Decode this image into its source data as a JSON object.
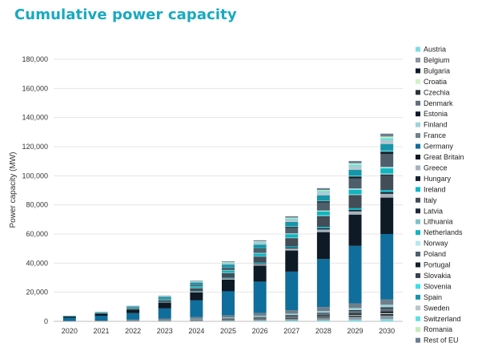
{
  "page_title": "Cumulative power capacity",
  "chart_data": {
    "type": "bar",
    "stacked": true,
    "title": "Cumulative power capacity",
    "xlabel": "",
    "ylabel": "Power capacity (MW)",
    "ylim": [
      0,
      180000
    ],
    "yticks": [
      0,
      20000,
      40000,
      60000,
      80000,
      100000,
      120000,
      140000,
      160000,
      180000
    ],
    "ytick_labels": [
      "0",
      "20,000",
      "40,000",
      "60,000",
      "80,000",
      "100,000",
      "120,000",
      "140,000",
      "160,000",
      "180,000"
    ],
    "grid": true,
    "legend_position": "right",
    "categories": [
      "2020",
      "2021",
      "2022",
      "2023",
      "2024",
      "2025",
      "2026",
      "2027",
      "2028",
      "2029",
      "2030"
    ],
    "series": [
      {
        "name": "Austria",
        "color": "#7fdbe4",
        "values": [
          20,
          30,
          60,
          100,
          150,
          250,
          400,
          600,
          800,
          1200,
          1500
        ]
      },
      {
        "name": "Belgium",
        "color": "#8c969f",
        "values": [
          50,
          80,
          150,
          250,
          400,
          600,
          900,
          1200,
          1600,
          2000,
          2500
        ]
      },
      {
        "name": "Bulgaria",
        "color": "#0e1d2b",
        "values": [
          10,
          20,
          40,
          80,
          120,
          200,
          300,
          450,
          600,
          800,
          1000
        ]
      },
      {
        "name": "Croatia",
        "color": "#d4f1c8",
        "values": [
          5,
          10,
          20,
          40,
          60,
          100,
          150,
          220,
          300,
          400,
          500
        ]
      },
      {
        "name": "Czechia",
        "color": "#2b333b",
        "values": [
          10,
          20,
          40,
          80,
          150,
          250,
          400,
          600,
          800,
          1100,
          1400
        ]
      },
      {
        "name": "Denmark",
        "color": "#5f6e7a",
        "values": [
          80,
          120,
          200,
          300,
          450,
          600,
          800,
          1000,
          1300,
          1600,
          2000
        ]
      },
      {
        "name": "Estonia",
        "color": "#0b1a28",
        "values": [
          5,
          10,
          20,
          40,
          70,
          120,
          200,
          300,
          400,
          550,
          700
        ]
      },
      {
        "name": "Finland",
        "color": "#9ed3d8",
        "values": [
          30,
          60,
          120,
          200,
          300,
          450,
          650,
          900,
          1200,
          1500,
          1800
        ]
      },
      {
        "name": "France",
        "color": "#6f7f8c",
        "values": [
          100,
          200,
          500,
          800,
          1200,
          1600,
          2000,
          2400,
          2800,
          3200,
          3600
        ]
      },
      {
        "name": "Germany",
        "color": "#0f6e9b",
        "values": [
          2200,
          3300,
          4500,
          7000,
          11500,
          16500,
          21500,
          26500,
          33000,
          39500,
          45000
        ]
      },
      {
        "name": "Great Britain",
        "color": "#0e1a26",
        "values": [
          800,
          1500,
          2500,
          4000,
          5500,
          8000,
          11000,
          14500,
          18500,
          21500,
          25000
        ]
      },
      {
        "name": "Greece",
        "color": "#a6b1ba",
        "values": [
          20,
          40,
          100,
          200,
          400,
          700,
          1000,
          1400,
          1800,
          2200,
          2600
        ]
      },
      {
        "name": "Hungary",
        "color": "#142230",
        "values": [
          10,
          20,
          40,
          80,
          150,
          250,
          400,
          550,
          750,
          950,
          1200
        ]
      },
      {
        "name": "Ireland",
        "color": "#11b8c8",
        "values": [
          20,
          40,
          80,
          150,
          250,
          400,
          600,
          800,
          1000,
          1200,
          1400
        ]
      },
      {
        "name": "Italy",
        "color": "#434d57",
        "values": [
          100,
          200,
          500,
          1000,
          2000,
          3000,
          4000,
          5500,
          7000,
          8500,
          10000
        ]
      },
      {
        "name": "Latvia",
        "color": "#1c2a36",
        "values": [
          5,
          10,
          20,
          40,
          70,
          120,
          180,
          260,
          350,
          450,
          550
        ]
      },
      {
        "name": "Lithuania",
        "color": "#7ec3c8",
        "values": [
          10,
          20,
          40,
          80,
          150,
          250,
          350,
          500,
          650,
          800,
          950
        ]
      },
      {
        "name": "Netherlands",
        "color": "#0fb5bf",
        "values": [
          100,
          200,
          400,
          700,
          1000,
          1400,
          1800,
          2200,
          2600,
          3000,
          3400
        ]
      },
      {
        "name": "Norway",
        "color": "#b6e8ec",
        "values": [
          10,
          20,
          40,
          80,
          150,
          250,
          350,
          500,
          650,
          800,
          950
        ]
      },
      {
        "name": "Poland",
        "color": "#4e5e6b",
        "values": [
          20,
          50,
          150,
          400,
          800,
          1500,
          2500,
          3800,
          5500,
          7000,
          9000
        ]
      },
      {
        "name": "Portugal",
        "color": "#10202d",
        "values": [
          10,
          20,
          40,
          80,
          150,
          250,
          400,
          600,
          800,
          1000,
          1200
        ]
      },
      {
        "name": "Slovakia",
        "color": "#36434e",
        "values": [
          5,
          10,
          20,
          40,
          70,
          120,
          180,
          260,
          350,
          450,
          550
        ]
      },
      {
        "name": "Slovenia",
        "color": "#3ddfe6",
        "values": [
          5,
          10,
          20,
          40,
          70,
          120,
          180,
          260,
          350,
          450,
          550
        ]
      },
      {
        "name": "Spain",
        "color": "#1695a8",
        "values": [
          150,
          300,
          600,
          1000,
          1500,
          2000,
          2500,
          3000,
          3500,
          4000,
          4500
        ]
      },
      {
        "name": "Sweden",
        "color": "#b9c5cd",
        "values": [
          100,
          200,
          300,
          500,
          700,
          1000,
          1300,
          1600,
          1900,
          2300,
          2600
        ]
      },
      {
        "name": "Switzerland",
        "color": "#5de0e4",
        "values": [
          20,
          40,
          80,
          150,
          250,
          400,
          550,
          700,
          900,
          1100,
          1300
        ]
      },
      {
        "name": "Romania",
        "color": "#c5ebbd",
        "values": [
          10,
          20,
          40,
          80,
          150,
          250,
          400,
          600,
          800,
          1000,
          1200
        ]
      },
      {
        "name": "Rest of EU",
        "color": "#6c7d91",
        "values": [
          30,
          60,
          100,
          200,
          300,
          500,
          700,
          1000,
          1300,
          1600,
          2000
        ]
      }
    ]
  }
}
